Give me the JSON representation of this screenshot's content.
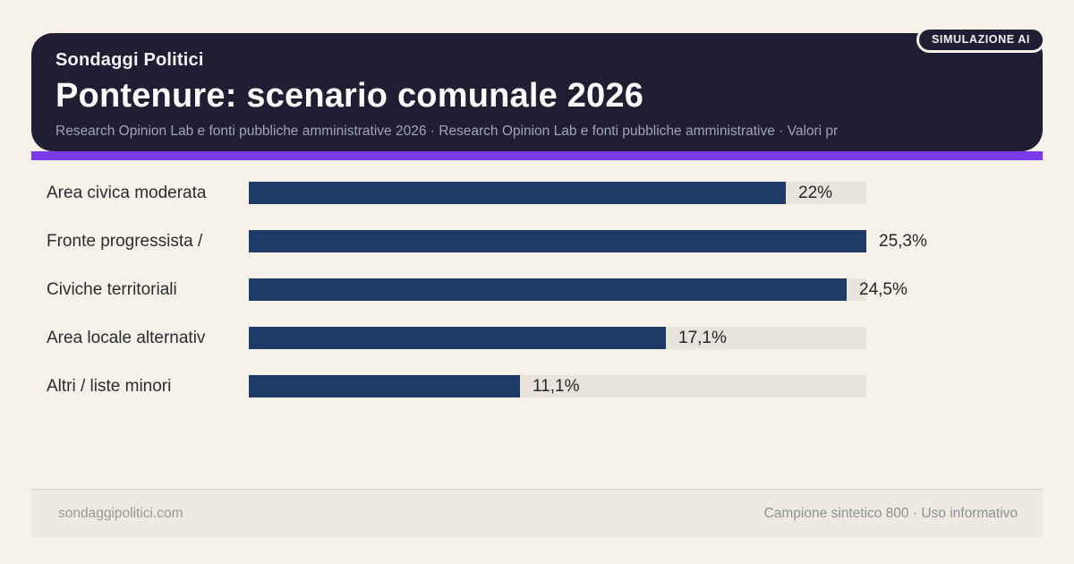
{
  "badge": {
    "label": "SIMULAZIONE AI"
  },
  "header": {
    "kicker": "Sondaggi Politici",
    "title": "Pontenure: scenario comunale 2026",
    "subtitle": "Research Opinion Lab e fonti pubbliche amministrative 2026 · Research Opinion Lab e fonti pubbliche amministrative · Valori pr"
  },
  "footer": {
    "site": "sondaggipolitici.com",
    "note": "Campione sintetico 800 · Uso informativo"
  },
  "colors": {
    "page_background": "#f6f2e9",
    "header_background": "#201e32",
    "accent": "#7c3aed",
    "bar": "#1e3a66",
    "bar_track": "#e8e4db",
    "footer_background": "#edeae2"
  },
  "chart_data": {
    "type": "bar",
    "orientation": "horizontal",
    "title": "Pontenure: scenario comunale 2026",
    "categories": [
      "Area civica moderata",
      "Fronte progressista /",
      "Civiche territoriali",
      "Area locale alternativ",
      "Altri / liste minori"
    ],
    "values": [
      22,
      25.3,
      24.5,
      17.1,
      11.1
    ],
    "value_labels": [
      "22%",
      "25,3%",
      "24,5%",
      "17,1%",
      "11,1%"
    ],
    "xlim": [
      0,
      25.3
    ],
    "grid": false,
    "legend": false,
    "bar_color": "#1e3a66",
    "track_color": "#e8e4db"
  }
}
